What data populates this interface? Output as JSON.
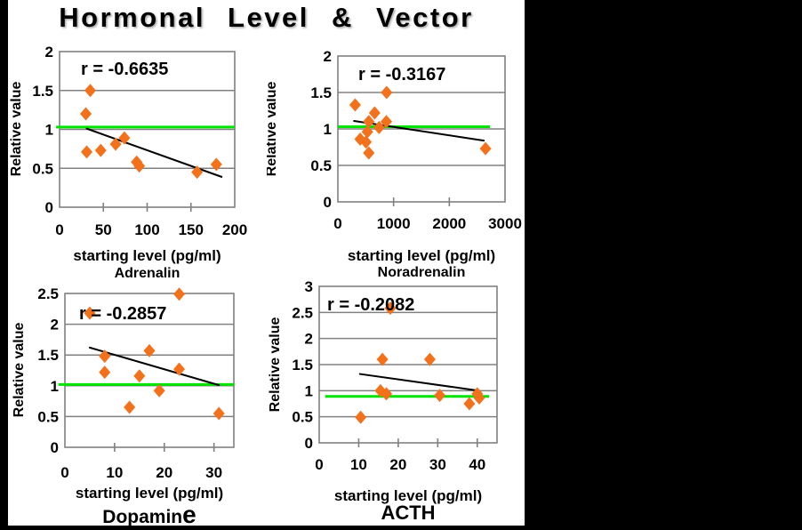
{
  "title": "Hormonal Level & Vector",
  "colors": {
    "background": "#000000",
    "panel": "#FFFFFF",
    "marker": "#F4711C",
    "baseline": "#00E400",
    "trend": "#000000",
    "grid": "#808080",
    "text": "#000000"
  },
  "chart_data": [
    {
      "type": "scatter",
      "name": "Adrenalin",
      "caption": "Adrenalin",
      "r_label": "r = -0.6635",
      "r_value": -0.6635,
      "xlabel": "starting level (pg/ml)",
      "ylabel": "Relative value",
      "xlim": [
        0,
        200
      ],
      "ylim": [
        0,
        2
      ],
      "x_ticks": [
        0,
        50,
        100,
        150,
        200
      ],
      "y_ticks": [
        0,
        0.5,
        1,
        1.5,
        2
      ],
      "grid": "horizontal",
      "legend": "none",
      "points": [
        [
          35,
          1.5
        ],
        [
          30,
          1.2
        ],
        [
          31,
          0.71
        ],
        [
          47,
          0.73
        ],
        [
          64,
          0.81
        ],
        [
          74,
          0.89
        ],
        [
          88,
          0.58
        ],
        [
          91,
          0.53
        ],
        [
          157,
          0.45
        ],
        [
          179,
          0.55
        ]
      ],
      "trend_line": [
        [
          31,
          1.01
        ],
        [
          185,
          0.39
        ]
      ],
      "baseline": {
        "value": 1.03,
        "x_start": -4,
        "x_end": 200
      }
    },
    {
      "type": "scatter",
      "name": "Noradrenalin",
      "caption": "Noradrenalin",
      "r_label": "r = -0.3167",
      "r_value": -0.3167,
      "xlabel": "starting level (pg/ml)",
      "ylabel": "Relative value",
      "xlim": [
        0,
        3000
      ],
      "ylim": [
        0,
        2
      ],
      "x_ticks": [
        0,
        1000,
        2000,
        3000
      ],
      "y_ticks": [
        0,
        0.5,
        1,
        1.5,
        2
      ],
      "grid": "horizontal",
      "legend": "none",
      "points": [
        [
          310,
          1.33
        ],
        [
          875,
          1.5
        ],
        [
          660,
          1.22
        ],
        [
          555,
          1.1
        ],
        [
          870,
          1.1
        ],
        [
          740,
          1.02
        ],
        [
          530,
          0.96
        ],
        [
          400,
          0.86
        ],
        [
          505,
          0.82
        ],
        [
          555,
          0.67
        ],
        [
          2650,
          0.73
        ]
      ],
      "trend_line": [
        [
          290,
          1.11
        ],
        [
          2620,
          0.84
        ]
      ],
      "baseline": {
        "value": 1.03,
        "x_start": 0,
        "x_end": 2730
      }
    },
    {
      "type": "scatter",
      "name": "Dopamine",
      "caption": "Dopamine",
      "r_label": "r = -0.2857",
      "r_value": -0.2857,
      "xlabel": "starting level (pg/ml)",
      "ylabel": "Relative value",
      "xlim": [
        0,
        34
      ],
      "ylim": [
        0,
        2.5
      ],
      "x_ticks": [
        0,
        10,
        20,
        30
      ],
      "y_ticks": [
        0,
        0.5,
        1,
        1.5,
        2,
        2.5
      ],
      "grid": "horizontal",
      "legend": "none",
      "points": [
        [
          23,
          2.49
        ],
        [
          5,
          2.18
        ],
        [
          17,
          1.57
        ],
        [
          8,
          1.48
        ],
        [
          23,
          1.27
        ],
        [
          8,
          1.22
        ],
        [
          15,
          1.16
        ],
        [
          19,
          0.92
        ],
        [
          13,
          0.65
        ],
        [
          31,
          0.55
        ]
      ],
      "trend_line": [
        [
          5,
          1.62
        ],
        [
          31,
          1.01
        ]
      ],
      "baseline": {
        "value": 1.02,
        "x_start": -1.3,
        "x_end": 34
      }
    },
    {
      "type": "scatter",
      "name": "ACTH",
      "caption": "ACTH",
      "r_label": "r = -0.2082",
      "r_value": -0.2082,
      "xlabel": "starting level (pg/ml)",
      "ylabel": "Relative value",
      "xlim": [
        0,
        45
      ],
      "ylim": [
        0,
        3
      ],
      "x_ticks": [
        0,
        10,
        20,
        30,
        40
      ],
      "y_ticks": [
        0,
        0.5,
        1,
        1.5,
        2,
        2.5,
        3
      ],
      "grid": "horizontal",
      "legend": "none",
      "points": [
        [
          18,
          2.58
        ],
        [
          16,
          1.6
        ],
        [
          28,
          1.6
        ],
        [
          15.5,
          1.0
        ],
        [
          17,
          0.94
        ],
        [
          30.5,
          0.91
        ],
        [
          40,
          0.94
        ],
        [
          40.5,
          0.86
        ],
        [
          38,
          0.75
        ],
        [
          10.5,
          0.49
        ]
      ],
      "trend_line": [
        [
          10.3,
          1.32
        ],
        [
          40.4,
          1.0
        ]
      ],
      "baseline": {
        "value": 0.89,
        "x_start": 1.5,
        "x_end": 43
      }
    }
  ]
}
